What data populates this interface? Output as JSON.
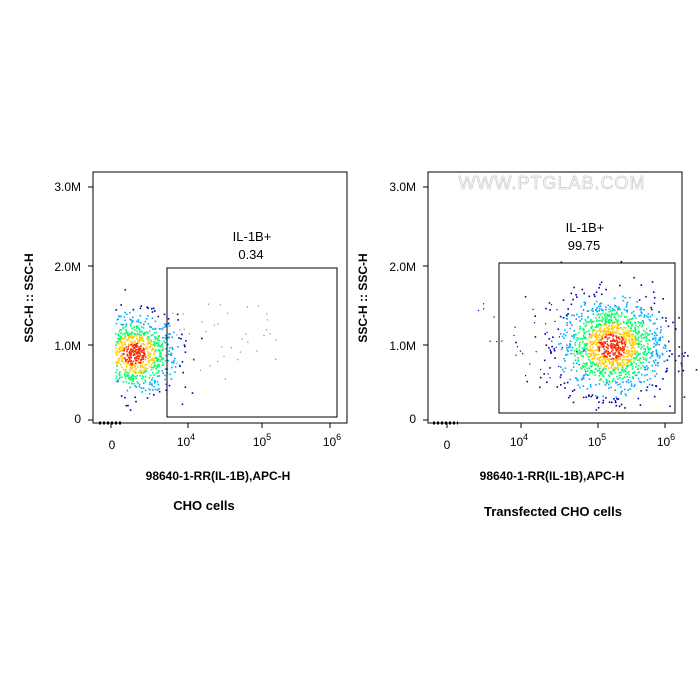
{
  "watermark": "WWW.PTGLAB.COM",
  "chart_data": [
    {
      "type": "scatter",
      "ylabel": "SSC-H :: SSC-H",
      "xlabel": "98640-1-RR(IL-1B),APC-H",
      "caption": "CHO cells",
      "yticks": [
        "0",
        "1.0M",
        "2.0M",
        "3.0M"
      ],
      "xticks": [
        {
          "base": "0",
          "exp": ""
        },
        {
          "base": "10",
          "exp": "4"
        },
        {
          "base": "10",
          "exp": "5"
        },
        {
          "base": "10",
          "exp": "6"
        }
      ],
      "gate": {
        "label": "IL-1B+",
        "value": "0.34"
      },
      "population": {
        "center_log10": 3.3,
        "center_ssc_m": 0.85,
        "spread_log10": 0.28,
        "spread_ssc_m": 0.25
      },
      "colors": {
        "dense": "#ff2a00",
        "mid": "#00ff66",
        "low": "#0000aa"
      }
    },
    {
      "type": "scatter",
      "ylabel": "SSC-H :: SSC-H",
      "xlabel": "98640-1-RR(IL-1B),APC-H",
      "caption": "Transfected CHO cells",
      "yticks": [
        "0",
        "1.0M",
        "2.0M",
        "3.0M"
      ],
      "xticks": [
        {
          "base": "0",
          "exp": ""
        },
        {
          "base": "10",
          "exp": "4"
        },
        {
          "base": "10",
          "exp": "5"
        },
        {
          "base": "10",
          "exp": "6"
        }
      ],
      "gate": {
        "label": "IL-1B+",
        "value": "99.75"
      },
      "population": {
        "center_log10": 5.25,
        "center_ssc_m": 0.95,
        "spread_log10": 0.35,
        "spread_ssc_m": 0.3
      },
      "colors": {
        "dense": "#ff2a00",
        "mid": "#00ff66",
        "low": "#0000aa"
      }
    }
  ]
}
